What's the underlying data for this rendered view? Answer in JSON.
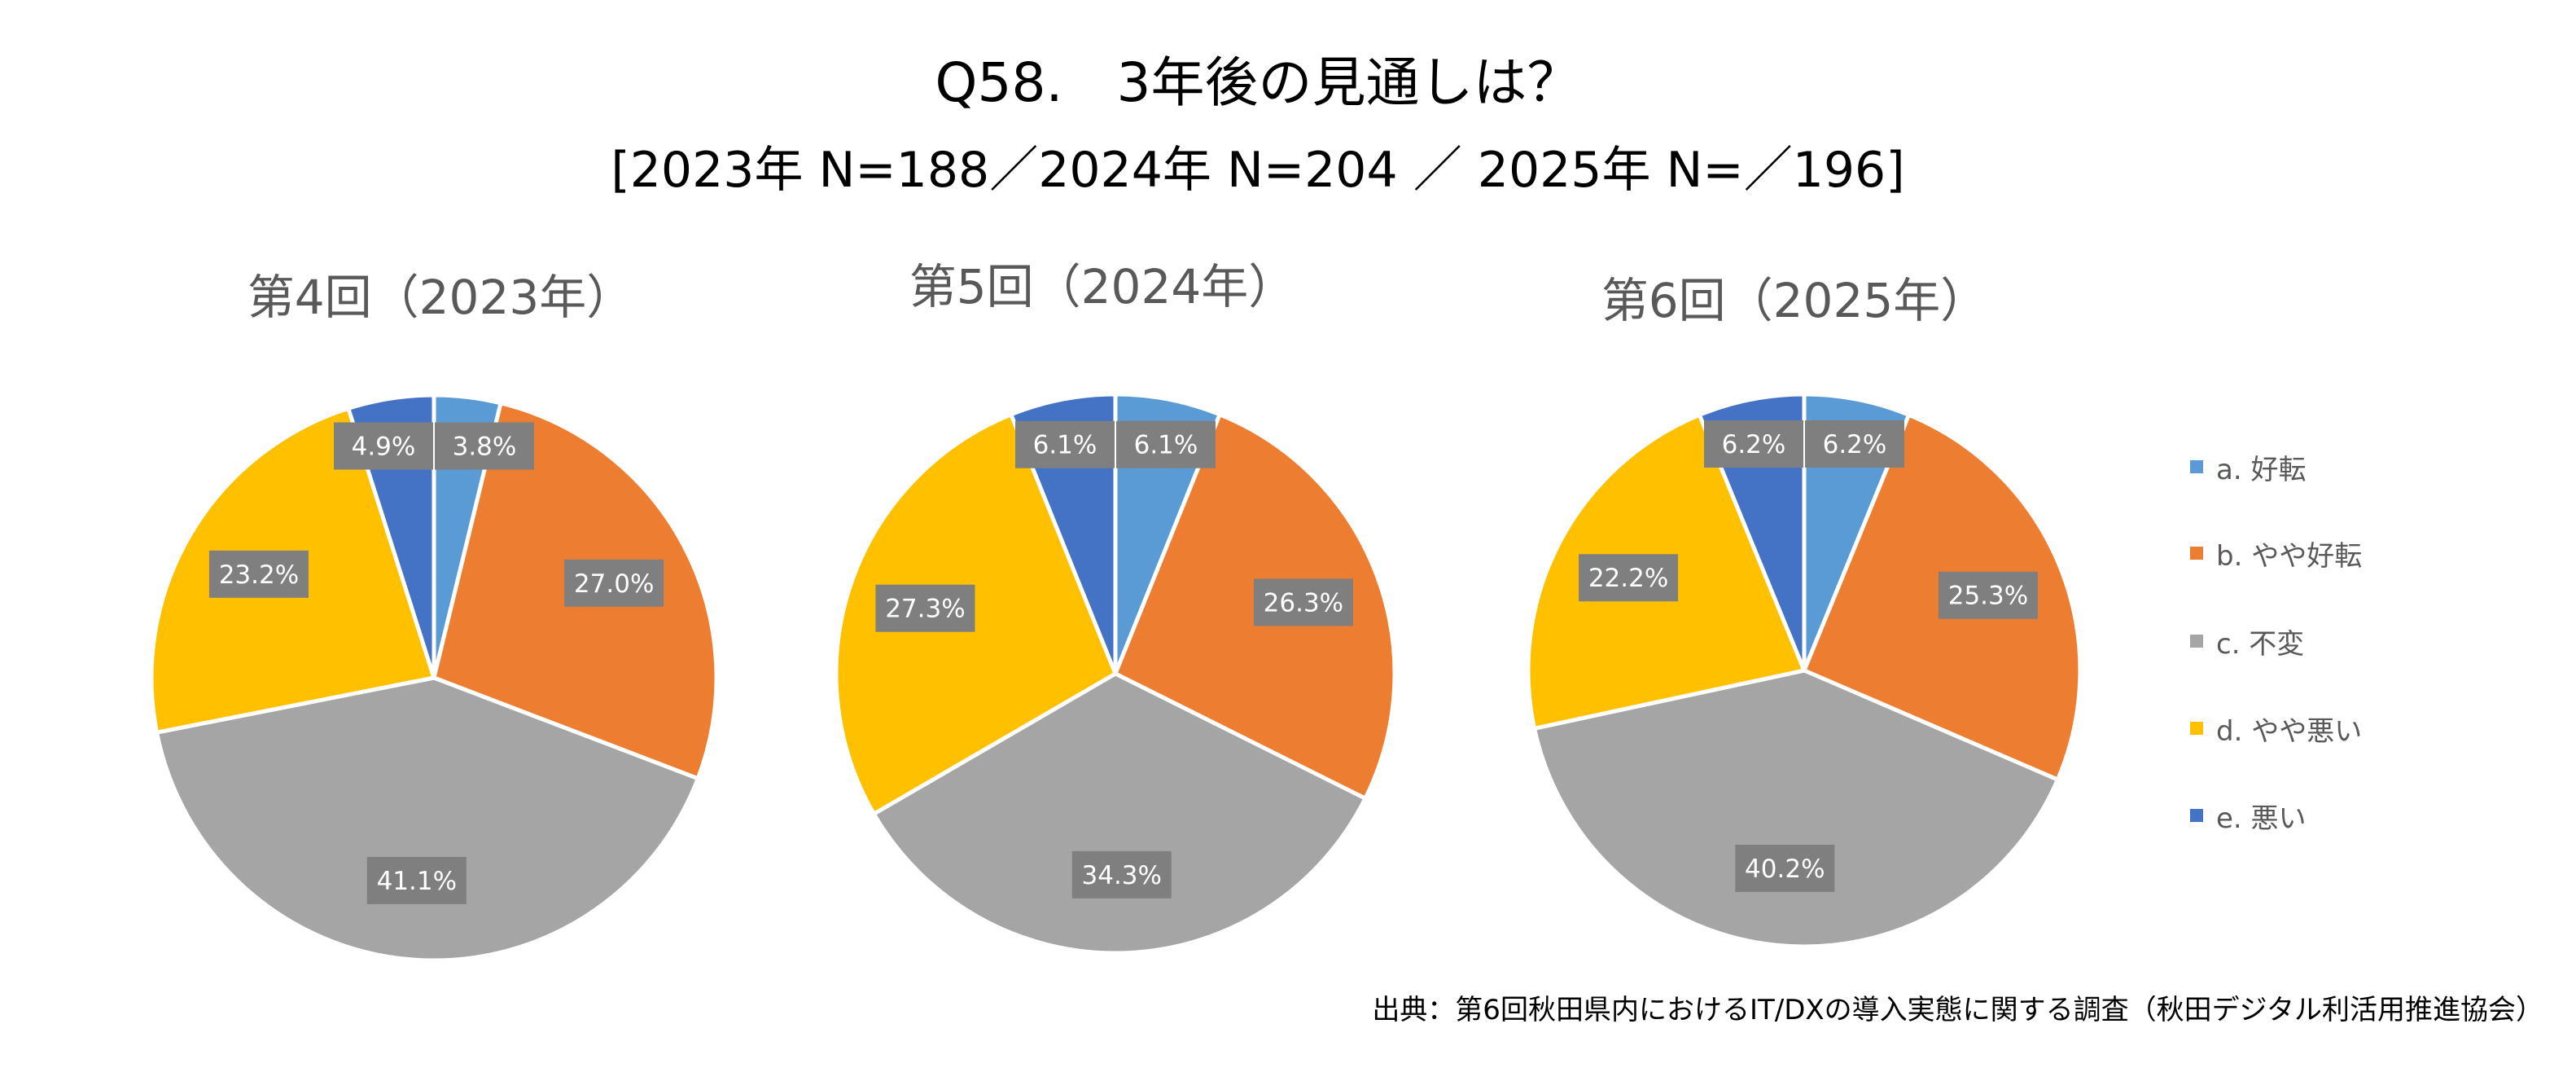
{
  "title": "Q58.　3年後の見通しは？",
  "subtitle": "[2023年 N=188／2024年 N=204 ／ 2025年 N=／196]",
  "source": "出典：第6回秋田県内におけるIT/DXの導入実態に関する調査（秋田デジタル利活用推進協会）",
  "legend": [
    {
      "label": "a. 好転",
      "color": "#5B9BD5"
    },
    {
      "label": "b. やや好転",
      "color": "#ED7D31"
    },
    {
      "label": "c. 不変",
      "color": "#A5A5A5"
    },
    {
      "label": "d. やや悪い",
      "color": "#FFC000"
    },
    {
      "label": "e. 悪い",
      "color": "#4472C4"
    }
  ],
  "chart_data": [
    {
      "type": "pie",
      "title": "第4回（2023年）",
      "categories": [
        "a. 好転",
        "b. やや好転",
        "c. 不変",
        "d. やや悪い",
        "e. 悪い"
      ],
      "values": [
        3.8,
        27.0,
        41.1,
        23.2,
        4.9
      ],
      "labels": [
        "3.8%",
        "27.0%",
        "41.1%",
        "23.2%",
        "4.9%"
      ]
    },
    {
      "type": "pie",
      "title": "第5回（2024年）",
      "categories": [
        "a. 好転",
        "b. やや好転",
        "c. 不変",
        "d. やや悪い",
        "e. 悪い"
      ],
      "values": [
        6.1,
        26.3,
        34.3,
        27.3,
        6.1
      ],
      "labels": [
        "6.1%",
        "26.3%",
        "34.3%",
        "27.3%",
        "6.1%"
      ]
    },
    {
      "type": "pie",
      "title": "第6回（2025年）",
      "categories": [
        "a. 好転",
        "b. やや好転",
        "c. 不変",
        "d. やや悪い",
        "e. 悪い"
      ],
      "values": [
        6.2,
        25.3,
        40.2,
        22.2,
        6.2
      ],
      "labels": [
        "6.2%",
        "25.3%",
        "40.2%",
        "22.2%",
        "6.2%"
      ]
    }
  ]
}
